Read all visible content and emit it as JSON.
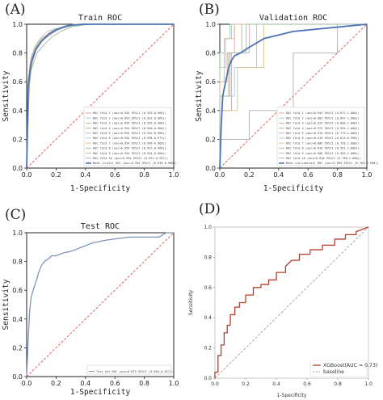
{
  "chart_data": [
    {
      "id": "A",
      "type": "line",
      "panel_label": "(A)",
      "title": "Train ROC",
      "xlabel": "1-Specificity",
      "ylabel": "Sensitivity",
      "xlim": [
        0,
        1
      ],
      "ylim": [
        0,
        1
      ],
      "xticks": [
        "0.0",
        "0.2",
        "0.4",
        "0.6",
        "0.8",
        "1.0"
      ],
      "yticks": [
        "0.0",
        "0.2",
        "0.4",
        "0.6",
        "0.8",
        "1.0"
      ],
      "grid": false,
      "legend_position": "lower-right",
      "colors": {
        "folds": [
          "#e8a0a0",
          "#b8c8dc",
          "#c9b078",
          "#9cc89c",
          "#d0a8c8",
          "#a8d0d0",
          "#d8c090",
          "#b0b0b0",
          "#e0b898",
          "#a0b8a0"
        ],
        "mean": "#4a74b4",
        "baseline": "#e05050"
      },
      "legend": [
        "ROC fold  1 (auc=0.954 95%CI (0.933-0.966))",
        "ROC fold  2 (auc=0.954 95%CI (0.932-0.965))",
        "ROC fold  3 (auc=0.954 95%CI (0.935-0.966))",
        "ROC fold  4 (auc=0.954 95%CI (0.940-0.966))",
        "ROC fold  5 (auc=0.954 95%CI (0.932-0.966))",
        "ROC fold  6 (auc=0.954 95%CI (0.936-0.971))",
        "ROC fold  7 (auc=0.954 95%CI (0.936-0.966))",
        "ROC fold  8 (auc=0.954 95%CI (0.937-0.966))",
        "ROC fold  9 (auc=0.954 95%CI (0.934-0.966))",
        "ROC fold 10 (auc=0.954 95%CI (0.922-0.957))",
        "Mean (train) ROC (auc=0.954 95%CI (0.939-0.965))"
      ],
      "series": [
        {
          "x": [
            0,
            0.01,
            0.03,
            0.06,
            0.1,
            0.15,
            0.2,
            0.28,
            0.4,
            1
          ],
          "y": [
            0,
            0.6,
            0.75,
            0.82,
            0.88,
            0.93,
            0.96,
            0.99,
            1,
            1
          ]
        },
        {
          "x": [
            0,
            0.01,
            0.03,
            0.05,
            0.09,
            0.14,
            0.2,
            0.26,
            0.35,
            1
          ],
          "y": [
            0,
            0.55,
            0.73,
            0.83,
            0.9,
            0.95,
            0.97,
            0.99,
            1,
            1
          ]
        },
        {
          "x": [
            0,
            0.01,
            0.02,
            0.05,
            0.08,
            0.12,
            0.18,
            0.25,
            0.32,
            1
          ],
          "y": [
            0,
            0.5,
            0.7,
            0.8,
            0.86,
            0.9,
            0.96,
            0.98,
            1,
            1
          ]
        },
        {
          "x": [
            0,
            0.01,
            0.03,
            0.06,
            0.1,
            0.16,
            0.22,
            0.3,
            0.4,
            1
          ],
          "y": [
            0,
            0.62,
            0.77,
            0.85,
            0.9,
            0.94,
            0.97,
            0.99,
            1,
            1
          ]
        },
        {
          "x": [
            0,
            0.01,
            0.04,
            0.07,
            0.11,
            0.15,
            0.21,
            0.28,
            0.36,
            1
          ],
          "y": [
            0,
            0.58,
            0.74,
            0.84,
            0.89,
            0.92,
            0.96,
            0.99,
            1,
            1
          ]
        },
        {
          "x": [
            0,
            0.02,
            0.04,
            0.06,
            0.09,
            0.14,
            0.19,
            0.26,
            0.34,
            1
          ],
          "y": [
            0,
            0.65,
            0.78,
            0.84,
            0.88,
            0.93,
            0.97,
            0.98,
            1,
            1
          ]
        },
        {
          "x": [
            0,
            0.01,
            0.03,
            0.05,
            0.1,
            0.15,
            0.2,
            0.27,
            0.38,
            1
          ],
          "y": [
            0,
            0.52,
            0.72,
            0.82,
            0.89,
            0.94,
            0.96,
            0.99,
            1,
            1
          ]
        },
        {
          "x": [
            0,
            0.02,
            0.03,
            0.06,
            0.09,
            0.13,
            0.19,
            0.27,
            0.35,
            1
          ],
          "y": [
            0,
            0.6,
            0.76,
            0.83,
            0.87,
            0.92,
            0.96,
            0.98,
            1,
            1
          ]
        },
        {
          "x": [
            0,
            0.01,
            0.02,
            0.05,
            0.09,
            0.14,
            0.21,
            0.29,
            0.39,
            1
          ],
          "y": [
            0,
            0.57,
            0.71,
            0.82,
            0.89,
            0.93,
            0.97,
            0.99,
            1,
            1
          ]
        },
        {
          "x": [
            0,
            0.01,
            0.03,
            0.07,
            0.12,
            0.17,
            0.23,
            0.3,
            0.42,
            1
          ],
          "y": [
            0,
            0.48,
            0.68,
            0.8,
            0.86,
            0.91,
            0.95,
            0.98,
            1,
            1
          ]
        },
        {
          "x": [
            0,
            0.01,
            0.03,
            0.06,
            0.1,
            0.15,
            0.2,
            0.28,
            0.38,
            1
          ],
          "y": [
            0,
            0.57,
            0.73,
            0.82,
            0.88,
            0.93,
            0.96,
            0.99,
            1,
            1
          ],
          "mean": true
        }
      ]
    },
    {
      "id": "B",
      "type": "line",
      "panel_label": "(B)",
      "title": "Validation ROC",
      "xlabel": "1-Specificity",
      "ylabel": "Sensitivity",
      "xlim": [
        0,
        1
      ],
      "ylim": [
        0,
        1
      ],
      "xticks": [
        "0.0",
        "0.2",
        "0.4",
        "0.6",
        "0.8",
        "1.0"
      ],
      "yticks": [
        "0.0",
        "0.2",
        "0.4",
        "0.6",
        "0.8",
        "1.0"
      ],
      "grid": false,
      "legend_position": "lower-right",
      "colors": {
        "folds": [
          "#e8a0a0",
          "#b8c8dc",
          "#c9b078",
          "#9cc89c",
          "#d0a8c8",
          "#a8d0d0",
          "#d8c090",
          "#b0b0b0",
          "#e0b898",
          "#a0b8a0"
        ],
        "mean": "#4a74b4",
        "baseline": "#e05050"
      },
      "legend": [
        "ROC fold  1 (auc=0.944 95%CI (0.877-1.000))",
        "ROC fold  2 (auc=0.962 95%CI (0.897-1.000))",
        "ROC fold  3 (auc=0.923 95%CI (0.830-1.000))",
        "ROC fold  4 (auc=0.972 95%CI (0.925-1.000))",
        "ROC fold  5 (auc=0.915 95%CI (0.773-1.000))",
        "ROC fold  6 (auc=0.910 95%CI (0.813-0.996))",
        "ROC fold  7 (auc=0.889 95%CI (0.763-1.000))",
        "ROC fold  8 (auc=0.810 95%CI (0.591-1.000))",
        "ROC fold  9 (auc=0.960 95%CI (0.903-1.000))",
        "ROC fold 10 (auc=0.918 95%CI (0.790-1.000))",
        "Mean (validation) ROC (auc=0.895 95%CI (0.763-0.998))"
      ],
      "series": [
        {
          "x": [
            0,
            0,
            0.05,
            0.05,
            0.1,
            0.1,
            1
          ],
          "y": [
            0,
            0.6,
            0.6,
            0.8,
            0.8,
            1,
            1
          ]
        },
        {
          "x": [
            0,
            0,
            0.04,
            0.04,
            0.08,
            0.08,
            1
          ],
          "y": [
            0,
            0.7,
            0.7,
            0.9,
            0.9,
            1,
            1
          ]
        },
        {
          "x": [
            0,
            0,
            0.06,
            0.06,
            0.15,
            0.15,
            1
          ],
          "y": [
            0,
            0.5,
            0.5,
            0.8,
            0.8,
            1,
            1
          ]
        },
        {
          "x": [
            0,
            0,
            0.03,
            0.03,
            0.07,
            0.07,
            1
          ],
          "y": [
            0,
            0.8,
            0.8,
            0.9,
            0.9,
            1,
            1
          ]
        },
        {
          "x": [
            0,
            0,
            0.08,
            0.08,
            0.2,
            0.2,
            1
          ],
          "y": [
            0,
            0.4,
            0.4,
            0.8,
            0.8,
            1,
            1
          ]
        },
        {
          "x": [
            0,
            0,
            0.1,
            0.1,
            0.25,
            0.25,
            1
          ],
          "y": [
            0,
            0.5,
            0.5,
            0.7,
            0.7,
            1,
            1
          ]
        },
        {
          "x": [
            0,
            0,
            0.12,
            0.12,
            0.3,
            0.3,
            1
          ],
          "y": [
            0,
            0.4,
            0.4,
            0.7,
            0.7,
            1,
            1
          ]
        },
        {
          "x": [
            0,
            0,
            0.2,
            0.2,
            0.5,
            0.5,
            0.8,
            0.8,
            1
          ],
          "y": [
            0,
            0.2,
            0.2,
            0.4,
            0.4,
            0.8,
            0.8,
            1,
            1
          ]
        },
        {
          "x": [
            0,
            0,
            0.03,
            0.03,
            0.1,
            0.1,
            1
          ],
          "y": [
            0,
            0.6,
            0.6,
            0.9,
            0.9,
            1,
            1
          ]
        },
        {
          "x": [
            0,
            0,
            0.07,
            0.07,
            0.18,
            0.18,
            1
          ],
          "y": [
            0,
            0.5,
            0.5,
            0.8,
            0.8,
            1,
            1
          ]
        },
        {
          "x": [
            0,
            0.01,
            0.02,
            0.04,
            0.06,
            0.08,
            0.1,
            0.14,
            0.2,
            0.3,
            0.5,
            0.8,
            1
          ],
          "y": [
            0,
            0.3,
            0.5,
            0.6,
            0.7,
            0.75,
            0.78,
            0.8,
            0.84,
            0.9,
            0.95,
            0.98,
            1
          ],
          "mean": true
        }
      ]
    },
    {
      "id": "C",
      "type": "line",
      "panel_label": "(C)",
      "title": "Test ROC",
      "xlabel": "1-Specificity",
      "ylabel": "Sensitivity",
      "xlim": [
        0,
        1
      ],
      "ylim": [
        0,
        1
      ],
      "xticks": [
        "0.0",
        "0.2",
        "0.4",
        "0.6",
        "0.8",
        "1.0"
      ],
      "yticks": [
        "0.0",
        "0.2",
        "0.4",
        "0.6",
        "0.8",
        "1.0"
      ],
      "grid": false,
      "legend_position": "lower-right",
      "colors": {
        "main": "#7e94b8",
        "baseline": "#e05050"
      },
      "legend": [
        "Test Set ROC (auc=0.879 95%CI (0.804-0.957))"
      ],
      "series": [
        {
          "x": [
            0,
            0.01,
            0.02,
            0.03,
            0.05,
            0.07,
            0.08,
            0.1,
            0.12,
            0.15,
            0.17,
            0.2,
            0.25,
            0.3,
            0.35,
            0.4,
            0.45,
            0.55,
            0.7,
            0.9,
            0.95,
            1
          ],
          "y": [
            0,
            0.25,
            0.45,
            0.55,
            0.62,
            0.68,
            0.72,
            0.77,
            0.8,
            0.82,
            0.84,
            0.84,
            0.86,
            0.87,
            0.89,
            0.91,
            0.93,
            0.95,
            0.97,
            0.97,
            1,
            1
          ]
        }
      ]
    },
    {
      "id": "D",
      "type": "line",
      "panel_label": "(D)",
      "xlabel": "1-Specificity",
      "ylabel": "Sensitivity",
      "xlim": [
        0,
        1
      ],
      "ylim": [
        0,
        1
      ],
      "xticks": [
        "0.0",
        "0.2",
        "0.4",
        "0.6",
        "0.8",
        "1.0"
      ],
      "yticks": [
        "0.0",
        "0.2",
        "0.4",
        "0.6",
        "0.8",
        "1.0"
      ],
      "grid": false,
      "legend_position": "lower-right",
      "colors": {
        "main": "#b5402a",
        "baseline": "#888888"
      },
      "legend": [
        "XGBoost(AUC = 0.73)",
        "baseline"
      ],
      "series": [
        {
          "x": [
            0,
            0,
            0.02,
            0.02,
            0.04,
            0.04,
            0.06,
            0.06,
            0.08,
            0.08,
            0.1,
            0.1,
            0.13,
            0.13,
            0.16,
            0.16,
            0.2,
            0.2,
            0.25,
            0.25,
            0.3,
            0.3,
            0.35,
            0.35,
            0.4,
            0.4,
            0.46,
            0.46,
            0.5,
            0.55,
            0.55,
            0.62,
            0.62,
            0.7,
            0.7,
            0.78,
            0.78,
            0.85,
            0.85,
            0.92,
            0.92,
            1
          ],
          "y": [
            0,
            0.04,
            0.04,
            0.15,
            0.15,
            0.22,
            0.22,
            0.3,
            0.3,
            0.35,
            0.35,
            0.42,
            0.42,
            0.47,
            0.47,
            0.5,
            0.5,
            0.55,
            0.55,
            0.6,
            0.6,
            0.62,
            0.62,
            0.65,
            0.65,
            0.7,
            0.7,
            0.74,
            0.78,
            0.78,
            0.82,
            0.82,
            0.85,
            0.85,
            0.88,
            0.88,
            0.92,
            0.92,
            0.95,
            0.95,
            0.97,
            1
          ]
        }
      ]
    }
  ]
}
